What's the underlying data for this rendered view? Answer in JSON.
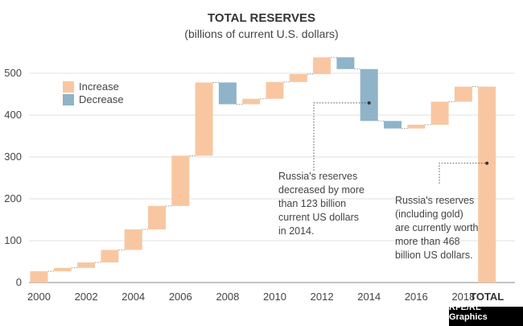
{
  "chart_data": {
    "type": "waterfall",
    "title": "TOTAL RESERVES",
    "subtitle": "(billions of current U.S. dollars)",
    "ylim": [
      0,
      540
    ],
    "yticks": [
      0,
      100,
      200,
      300,
      400,
      500
    ],
    "x_tick_years": [
      "2000",
      "2002",
      "2004",
      "2006",
      "2008",
      "2010",
      "2012",
      "2014",
      "2016",
      "2018"
    ],
    "total_label": "TOTAL",
    "legend": [
      {
        "label": "Increase",
        "color": "#F8C7A1"
      },
      {
        "label": "Decrease",
        "color": "#8FB3C8"
      }
    ],
    "legend_position": "top-left",
    "grid": true,
    "bars": [
      {
        "year": "2000",
        "start": 0,
        "end": 27
      },
      {
        "year": "2001",
        "start": 27,
        "end": 35
      },
      {
        "year": "2002",
        "start": 35,
        "end": 48
      },
      {
        "year": "2003",
        "start": 48,
        "end": 78
      },
      {
        "year": "2004",
        "start": 78,
        "end": 127
      },
      {
        "year": "2005",
        "start": 127,
        "end": 183
      },
      {
        "year": "2006",
        "start": 183,
        "end": 303
      },
      {
        "year": "2007",
        "start": 303,
        "end": 478
      },
      {
        "year": "2008",
        "start": 478,
        "end": 426
      },
      {
        "year": "2009",
        "start": 426,
        "end": 439
      },
      {
        "year": "2010",
        "start": 439,
        "end": 479
      },
      {
        "year": "2011",
        "start": 479,
        "end": 498
      },
      {
        "year": "2012",
        "start": 498,
        "end": 538
      },
      {
        "year": "2013",
        "start": 538,
        "end": 510
      },
      {
        "year": "2014",
        "start": 510,
        "end": 386
      },
      {
        "year": "2015",
        "start": 386,
        "end": 368
      },
      {
        "year": "2016",
        "start": 368,
        "end": 377
      },
      {
        "year": "2017",
        "start": 377,
        "end": 432
      },
      {
        "year": "2018",
        "start": 432,
        "end": 468
      }
    ],
    "total": 468,
    "annotations": [
      {
        "lines": [
          "Russia's reserves",
          "decreased by more",
          "than 123 billion",
          "current US dollars",
          "in 2014."
        ],
        "points_to": "2014",
        "value": 429
      },
      {
        "lines": [
          "Russia's reserves",
          "(including gold)",
          "are currently worth",
          "more than 468",
          "billion US dollars."
        ],
        "points_to": "TOTAL",
        "value": 285
      }
    ],
    "credit": "RFE/RL Graphics"
  }
}
